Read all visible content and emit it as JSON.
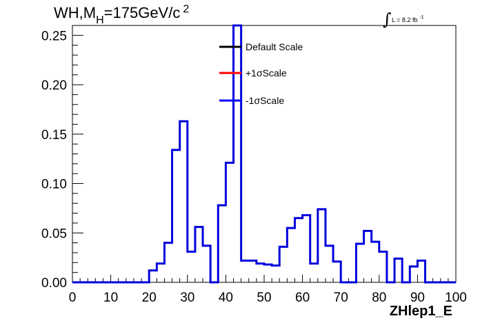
{
  "chart_data": {
    "type": "line",
    "title_main": "WH,M",
    "title_sub": "H",
    "title_rest": "=175GeV/c",
    "title_sup": "2",
    "lumi_symbol": "∫",
    "lumi_text": "L = 8.2 fb",
    "lumi_sup": "-1",
    "xlabel": "ZHlep1_E",
    "ylabel": "",
    "xlim": [
      0,
      100
    ],
    "ylim": [
      0,
      0.26
    ],
    "x_ticks": [
      "0",
      "10",
      "20",
      "30",
      "40",
      "50",
      "60",
      "70",
      "80",
      "90",
      "100"
    ],
    "y_ticks": [
      "0.00",
      "0.05",
      "0.10",
      "0.15",
      "0.20",
      "0.25"
    ],
    "bin_edges": [
      0,
      2,
      4,
      6,
      8,
      10,
      12,
      14,
      16,
      18,
      20,
      22,
      24,
      26,
      28,
      30,
      32,
      34,
      36,
      38,
      40,
      42,
      44,
      46,
      48,
      50,
      52,
      54,
      56,
      58,
      60,
      62,
      64,
      66,
      68,
      70,
      72,
      74,
      76,
      78,
      80,
      82,
      84,
      86,
      88,
      90,
      92,
      94,
      96,
      98,
      100
    ],
    "legend": [
      {
        "label": "Default Scale",
        "color": "#000000"
      },
      {
        "label": "+1σScale",
        "color": "#ff0000"
      },
      {
        "label": "-1σScale",
        "color": "#0000ff"
      }
    ],
    "series": [
      {
        "name": "-1σScale",
        "color": "#0000dd",
        "values": [
          0,
          0,
          0,
          0,
          0,
          0,
          0,
          0,
          0,
          0,
          0.012,
          0.019,
          0.04,
          0.134,
          0.163,
          0.031,
          0.056,
          0.037,
          0,
          0.078,
          0.121,
          0.26,
          0.022,
          0.022,
          0.019,
          0.018,
          0.017,
          0.036,
          0.055,
          0.065,
          0.068,
          0.019,
          0.074,
          0.037,
          0.021,
          0,
          0,
          0.039,
          0.052,
          0.041,
          0.031,
          0,
          0.024,
          0,
          0.016,
          0.022,
          0,
          0,
          0,
          0
        ]
      }
    ]
  }
}
